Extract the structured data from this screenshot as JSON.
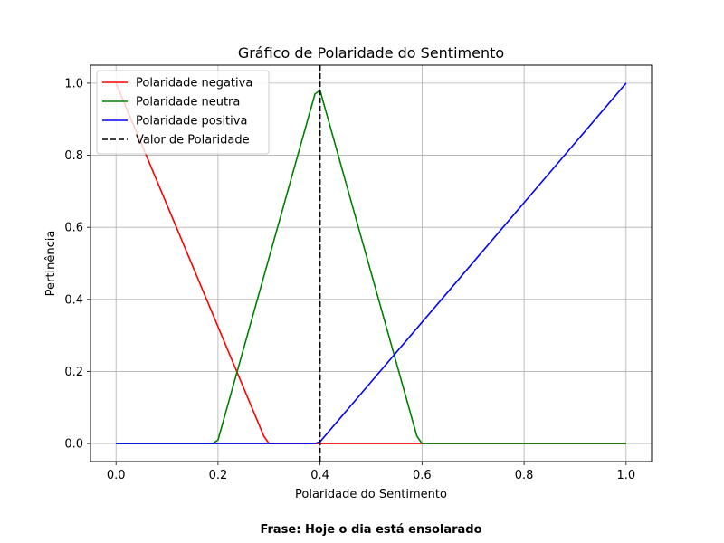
{
  "chart_data": {
    "type": "line",
    "title": "Gráfico de Polaridade do Sentimento",
    "xlabel": "Polaridade do Sentimento",
    "ylabel": "Pertinência",
    "xlim": [
      -0.05,
      1.05
    ],
    "ylim": [
      -0.05,
      1.05
    ],
    "xticks": [
      "0.0",
      "0.2",
      "0.4",
      "0.6",
      "0.8",
      "1.0"
    ],
    "yticks": [
      "0.0",
      "0.2",
      "0.4",
      "0.6",
      "0.8",
      "1.0"
    ],
    "grid": true,
    "legend_position": "top-left",
    "series": [
      {
        "name": "Polaridade negativa",
        "color": "#ff0000",
        "style": "solid",
        "x": [
          0.0,
          0.29,
          0.3,
          1.0
        ],
        "y": [
          1.0,
          0.02,
          0.0,
          0.0
        ]
      },
      {
        "name": "Polaridade neutra",
        "color": "#008000",
        "style": "solid",
        "x": [
          0.0,
          0.19,
          0.2,
          0.39,
          0.4,
          0.59,
          0.6,
          1.0
        ],
        "y": [
          0.0,
          0.0,
          0.01,
          0.97,
          0.98,
          0.02,
          0.0,
          0.0
        ]
      },
      {
        "name": "Polaridade positiva",
        "color": "#0000ff",
        "style": "solid",
        "x": [
          0.0,
          0.39,
          0.4,
          1.0
        ],
        "y": [
          0.0,
          0.0,
          0.005,
          1.0
        ]
      }
    ],
    "vline": {
      "name": "Valor de Polaridade",
      "x": 0.4,
      "color": "#000000",
      "style": "dashed"
    }
  },
  "footer": "Frase: Hoje o dia está ensolarado"
}
